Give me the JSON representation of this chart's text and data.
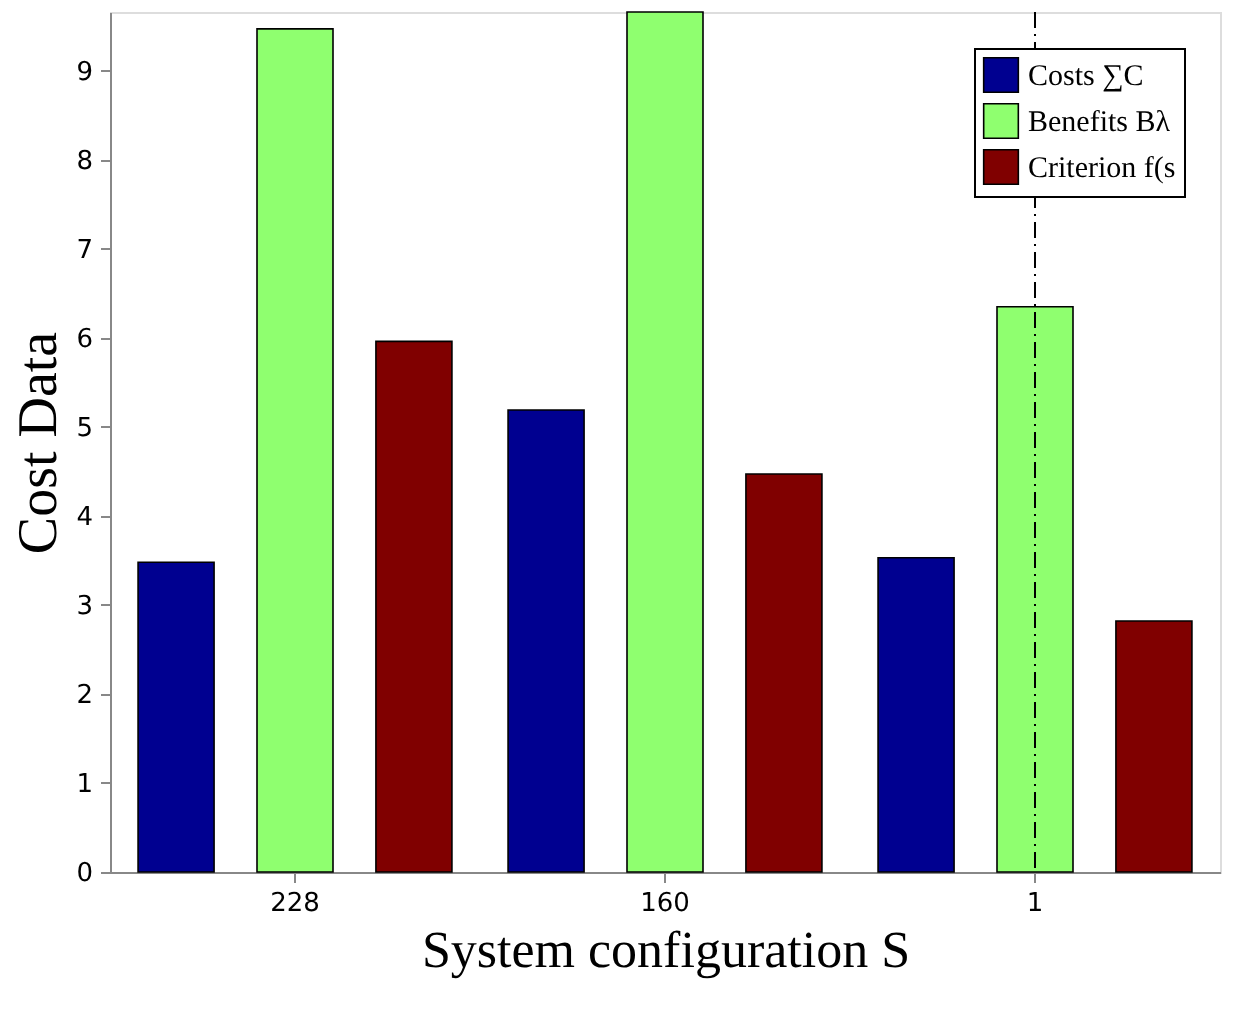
{
  "chart_data": {
    "type": "bar",
    "xlabel": "System configuration S",
    "ylabel": "Cost Data",
    "categories": [
      "228",
      "160",
      "1"
    ],
    "series": [
      {
        "name": "Costs ∑C",
        "color": "#000090",
        "values": [
          3.48,
          5.19,
          3.53
        ]
      },
      {
        "name": "Benefits Bλ",
        "color": "#8fff6f",
        "values": [
          9.47,
          9.66,
          6.35
        ]
      },
      {
        "name": "Criterion f(s",
        "color": "#800000",
        "values": [
          5.96,
          4.47,
          2.82
        ]
      }
    ],
    "ylim": [
      0,
      9.66
    ],
    "yticks": [
      0,
      1,
      2,
      3,
      4,
      5,
      6,
      7,
      8,
      9
    ],
    "grid": false,
    "legend": "top right",
    "ref_lines": [
      {
        "axis": "x",
        "value": "1",
        "line_style": "dashdot",
        "color": "#000000"
      }
    ]
  }
}
